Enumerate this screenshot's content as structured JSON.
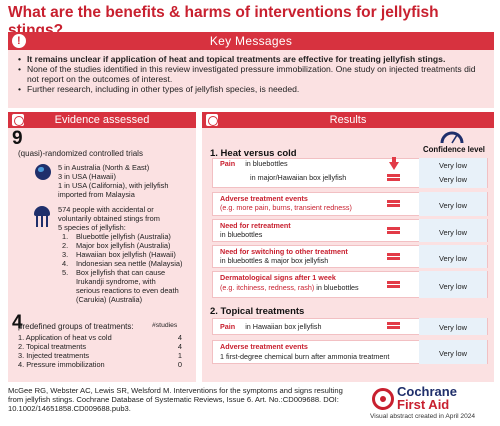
{
  "title": "What are the benefits & harms of interventions for jellyfish stings?",
  "key_messages": {
    "header": "Key Messages",
    "bullets": [
      "It remains unclear if application of heat and topical treatments are effective for treating jellyfish stings.",
      "None of the studies identified in this review investigated pressure immobilization. One study on injected treatments did not report on the outcomes of interest.",
      "Further research, including in other types of jellyfish species, is needed."
    ]
  },
  "evidence": {
    "header": "Evidence assessed",
    "trials_count": "9",
    "trials_label": "(quasi)-randomized controlled trials",
    "locations": [
      "5 in Australia (North & East)",
      "3 in USA (Hawaii)",
      "1 in USA (California), with jellyfish",
      "imported from Malaysia"
    ],
    "people_lines": [
      "574 people with accidental or",
      "voluntarily obtained stings from",
      "5 species of jellyfish:"
    ],
    "species": [
      "Bluebottle jellyfish (Australia)",
      "Major box jellyfish (Australia)",
      "Hawaiian box jellyfish (Hawaii)",
      "Indonesian sea nettle (Malaysia)",
      "Box jellyfish that can cause"
    ],
    "species_cont": [
      "Irukandji syndrome, with",
      "serious reactions to even death",
      "(Carukia) (Australia)"
    ],
    "groups_count": "4",
    "groups_label": "predefined groups of treatments:",
    "groups_col": "#studies",
    "groups": [
      {
        "label": "1.   Application of heat vs cold",
        "n": "4"
      },
      {
        "label": "2.   Topical treatments",
        "n": "4"
      },
      {
        "label": "3.   Injected treatments",
        "n": "1"
      },
      {
        "label": "4.   Pressure immobilization",
        "n": "0"
      }
    ]
  },
  "results": {
    "header": "Results",
    "confidence_label": "Confidence level",
    "section1": "1.   Heat versus cold",
    "section2": "2.   Topical treatments",
    "pain": "Pain",
    "in_bluebottles": "in bluebottles",
    "in_major": "in major/Hawaiian box jellyfish",
    "adverse": "Adverse treatment events",
    "adverse_eg": "(e.g. more pain, burns, transient redness)",
    "retreat": "Need for retreatment",
    "retreat_sub": "in bluebottles",
    "switching": "Need for switching to other treatment",
    "switching_sub": "in bluebottles  & major box jellyfish",
    "derm": "Dermatological signs after 1 week",
    "derm_eg": "(e.g. itchiness, redness, rash)",
    "derm_sub": " in bluebottles",
    "pain_hawaii_sub": "in Hawaiian box jellyfish",
    "adverse2_sub": "1 first-degree  chemical burn after ammonia treatment",
    "levels": [
      "Very low",
      "Very low",
      "Very low",
      "Very low",
      "Very low",
      "Very low",
      "Very low",
      "Very low"
    ]
  },
  "footer": {
    "reference": "McGee RG, Webster AC, Lewis SR, Welsford M. Interventions for the symptoms and signs resulting from jellyfish stings. Cochrane Database of Systematic Reviews, Issue 6. Art. No.:CD009688. DOI: 10.1002/14651858.CD009688.pub3.",
    "logo_line1": "Cochrane",
    "logo_line2": "First Aid",
    "credit": "Visual abstract created in April 2024"
  },
  "colors": {
    "accent": "#d7323f",
    "panel": "#fbe1e2",
    "navy": "#1f2f6b",
    "confidence_bg": "#e8f1f9"
  }
}
